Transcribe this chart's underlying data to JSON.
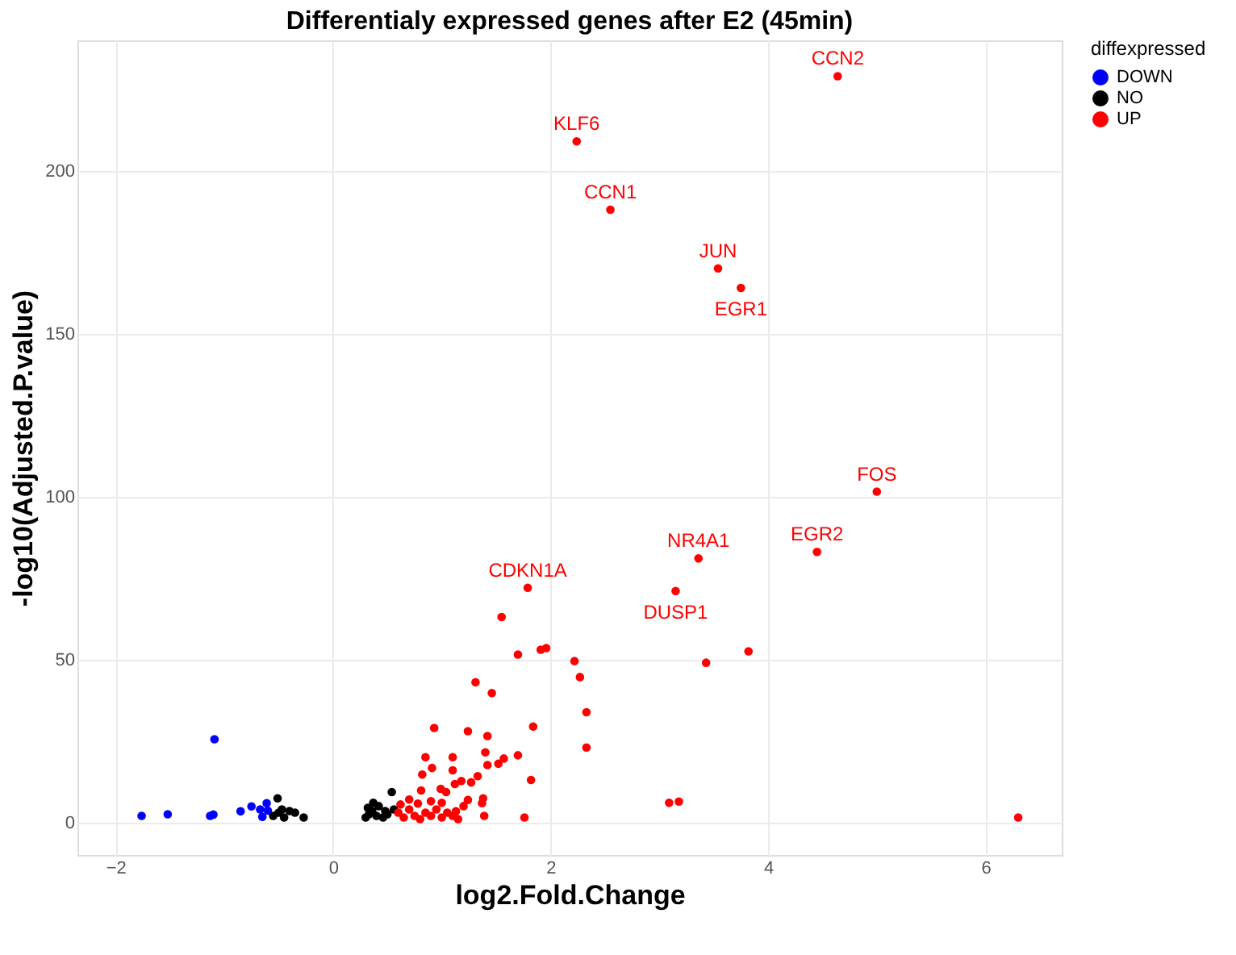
{
  "chart_data": {
    "type": "scatter",
    "title": "Differentialy expressed genes after E2 (45min)",
    "xlabel": "log2.Fold.Change",
    "ylabel": "-log10(Adjusted.P.value)",
    "legend_title": "diffexpressed",
    "legend": "right",
    "grid": true,
    "marker": "circle",
    "xlim": [
      -2.35,
      6.7
    ],
    "ylim": [
      -10,
      240
    ],
    "xticks": [
      -2,
      0,
      2,
      4,
      6
    ],
    "yticks": [
      0,
      50,
      100,
      150,
      200
    ],
    "series": [
      {
        "name": "DOWN",
        "color": "#0000ff",
        "x": [
          -1.76,
          -1.52,
          -1.13,
          -1.1,
          -1.09,
          -0.85,
          -0.75,
          -0.61,
          -0.65,
          -0.6,
          -0.67
        ],
        "values": [
          2,
          2.5,
          2,
          2.4,
          25.5,
          3.4,
          4.9,
          5.9,
          1.7,
          3.6,
          4
        ]
      },
      {
        "name": "NO",
        "color": "#000000",
        "x": [
          -0.51,
          -0.55,
          -0.5,
          -0.45,
          -0.35,
          -0.27,
          -0.47,
          -0.4,
          0.3,
          0.33,
          0.36,
          0.37,
          0.4,
          0.46,
          0.5,
          0.54,
          0.56,
          0.32,
          0.42,
          0.48
        ],
        "values": [
          7.4,
          2,
          3,
          1.5,
          3,
          1.5,
          4,
          3.5,
          1.5,
          2.5,
          3.5,
          6,
          2,
          1.5,
          2.5,
          9.3,
          4,
          4.5,
          5,
          3.5
        ]
      },
      {
        "name": "UP",
        "color": "#ff0000",
        "x": [
          4.64,
          2.24,
          2.55,
          3.54,
          3.75,
          5.0,
          4.45,
          3.36,
          3.15,
          3.43,
          3.82,
          3.09,
          3.18,
          6.3,
          1.79,
          1.55,
          1.7,
          1.91,
          1.96,
          2.22,
          2.27,
          1.31,
          1.46,
          2.33,
          2.33,
          1.84,
          0.93,
          1.24,
          1.42,
          1.4,
          1.7,
          0.85,
          1.1,
          1.57,
          1.52,
          0.91,
          1.1,
          1.42,
          0.82,
          1.33,
          1.82,
          1.18,
          1.27,
          1.12,
          0.99,
          0.81,
          1.04,
          1.24,
          1.38,
          1.37,
          1.13,
          1.39,
          1.76,
          0.6,
          0.65,
          0.7,
          0.75,
          0.8,
          0.85,
          0.9,
          0.95,
          1.0,
          1.05,
          1.1,
          1.15,
          0.7,
          0.62,
          0.9,
          1.2,
          0.78,
          1.0
        ],
        "values": [
          229,
          209,
          188,
          170,
          164,
          101.5,
          83,
          81,
          71,
          49,
          52.5,
          6,
          6.4,
          1.5,
          72,
          63,
          51.5,
          53,
          53.5,
          49.5,
          44.6,
          43,
          39.7,
          33.8,
          23,
          29.4,
          29,
          28,
          26.5,
          21.5,
          20.6,
          20,
          20,
          19.6,
          18,
          16.7,
          16,
          17.6,
          14.7,
          14.2,
          13,
          12.7,
          12.3,
          11.8,
          10.3,
          9.8,
          9.3,
          6.9,
          7.4,
          5.9,
          3.4,
          2,
          1.5,
          3,
          1.5,
          4,
          2,
          1,
          3,
          2,
          4,
          1.5,
          3,
          2,
          1,
          7,
          5.5,
          6.5,
          5,
          5.8,
          6
        ]
      }
    ],
    "annotations": [
      {
        "text": "CCN2",
        "x": 4.64,
        "y": 229
      },
      {
        "text": "KLF6",
        "x": 2.24,
        "y": 209
      },
      {
        "text": "CCN1",
        "x": 2.55,
        "y": 188
      },
      {
        "text": "JUN",
        "x": 3.54,
        "y": 170
      },
      {
        "text": "EGR1",
        "x": 3.75,
        "y": 164
      },
      {
        "text": "FOS",
        "x": 5.0,
        "y": 101.5
      },
      {
        "text": "EGR2",
        "x": 4.45,
        "y": 83
      },
      {
        "text": "NR4A1",
        "x": 3.36,
        "y": 81
      },
      {
        "text": "DUSP1",
        "x": 3.15,
        "y": 71
      },
      {
        "text": "CDKN1A",
        "x": 1.79,
        "y": 72
      }
    ]
  }
}
